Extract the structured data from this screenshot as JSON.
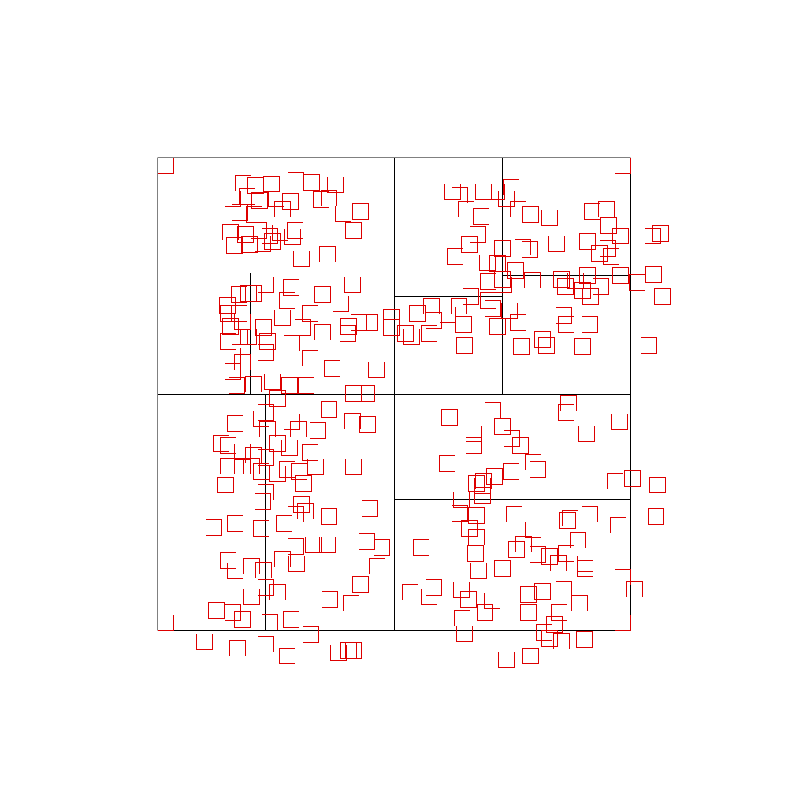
{
  "colors": {
    "partition": "#000000",
    "box": "#dd0000",
    "background": "#ffffff"
  },
  "diagram_data": {
    "type": "spatial-partition",
    "domain": [
      0,
      1
    ],
    "box_size": 0.03333,
    "cells": [
      [
        0.0,
        0.0,
        0.5,
        0.2433
      ],
      [
        0.5,
        0.0,
        0.7283,
        0.2933
      ],
      [
        0.7283,
        0.0,
        1.0,
        0.2483
      ],
      [
        0.0,
        0.2433,
        0.5,
        0.5
      ],
      [
        0.5,
        0.2933,
        0.7283,
        0.5
      ],
      [
        0.7283,
        0.2483,
        1.0,
        0.5
      ],
      [
        0.0,
        0.5,
        0.5,
        0.7467
      ],
      [
        0.0,
        0.7467,
        0.5,
        1.0
      ],
      [
        0.5,
        0.5,
        1.0,
        0.7217
      ],
      [
        0.5,
        0.7217,
        1.0,
        1.0
      ],
      [
        0.2117,
        0.0,
        0.2117,
        0.2433
      ],
      [
        0.195,
        0.2433,
        0.195,
        0.5
      ],
      [
        0.2267,
        0.5,
        0.2267,
        0.7467
      ],
      [
        0.2267,
        0.7467,
        0.2267,
        1.0
      ],
      [
        0.7633,
        0.7217,
        0.7633,
        1.0
      ]
    ],
    "boxes": [
      [
        0.0167,
        0.0167
      ],
      [
        0.9833,
        0.0167
      ],
      [
        0.0167,
        0.9833
      ],
      [
        0.9833,
        0.9833
      ],
      [
        0.18,
        0.0533
      ],
      [
        0.2067,
        0.0583
      ],
      [
        0.24,
        0.055
      ],
      [
        0.2917,
        0.0467
      ],
      [
        0.325,
        0.0517
      ],
      [
        0.375,
        0.0567
      ],
      [
        0.1583,
        0.0867
      ],
      [
        0.1883,
        0.0817
      ],
      [
        0.215,
        0.09
      ],
      [
        0.25,
        0.0867
      ],
      [
        0.28,
        0.0917
      ],
      [
        0.345,
        0.0883
      ],
      [
        0.3917,
        0.1183
      ],
      [
        0.1733,
        0.115
      ],
      [
        0.2033,
        0.12
      ],
      [
        0.2633,
        0.1083
      ],
      [
        0.3617,
        0.085
      ],
      [
        0.4283,
        0.1133
      ],
      [
        0.1533,
        0.1567
      ],
      [
        0.185,
        0.1617
      ],
      [
        0.2133,
        0.1533
      ],
      [
        0.2367,
        0.165
      ],
      [
        0.2583,
        0.1583
      ],
      [
        0.29,
        0.1533
      ],
      [
        0.4133,
        0.1533
      ],
      [
        0.1617,
        0.185
      ],
      [
        0.1933,
        0.1833
      ],
      [
        0.2217,
        0.1817
      ],
      [
        0.2417,
        0.1767
      ],
      [
        0.285,
        0.1667
      ],
      [
        0.3583,
        0.2033
      ],
      [
        0.3033,
        0.2133
      ],
      [
        0.7467,
        0.0617
      ],
      [
        0.6883,
        0.0717
      ],
      [
        0.7167,
        0.0717
      ],
      [
        0.7367,
        0.0867
      ],
      [
        0.7617,
        0.1083
      ],
      [
        0.7883,
        0.12
      ],
      [
        0.6833,
        0.1233
      ],
      [
        0.8283,
        0.1267
      ],
      [
        0.9183,
        0.1133
      ],
      [
        0.9483,
        0.1083
      ],
      [
        0.9533,
        0.1433
      ],
      [
        0.9783,
        0.165
      ],
      [
        0.9083,
        0.1767
      ],
      [
        0.9333,
        0.2017
      ],
      [
        0.9583,
        0.2083
      ],
      [
        0.7867,
        0.1933
      ],
      [
        0.8433,
        0.1817
      ],
      [
        0.7283,
        0.1917
      ],
      [
        0.7717,
        0.1883
      ],
      [
        0.6233,
        0.0717
      ],
      [
        0.6383,
        0.0783
      ],
      [
        0.6517,
        0.1083
      ],
      [
        0.6767,
        0.1617
      ],
      [
        0.6583,
        0.1833
      ],
      [
        0.6283,
        0.2083
      ],
      [
        0.6967,
        0.2217
      ],
      [
        0.7183,
        0.2233
      ],
      [
        0.7567,
        0.2383
      ],
      [
        0.7283,
        0.2567
      ],
      [
        0.7317,
        0.2683
      ],
      [
        0.7917,
        0.2583
      ],
      [
        0.8533,
        0.2567
      ],
      [
        0.8833,
        0.26
      ],
      [
        0.9083,
        0.2483
      ],
      [
        0.9783,
        0.2483
      ],
      [
        1.0133,
        0.2633
      ],
      [
        1.0633,
        0.16
      ],
      [
        1.0467,
        0.165
      ],
      [
        1.0483,
        0.2467
      ],
      [
        1.0667,
        0.2933
      ],
      [
        1.0383,
        0.3967
      ],
      [
        0.9367,
        0.2717
      ],
      [
        0.915,
        0.2933
      ],
      [
        0.8983,
        0.28
      ],
      [
        0.8617,
        0.2717
      ],
      [
        0.8583,
        0.3333
      ],
      [
        0.9133,
        0.3517
      ],
      [
        0.8983,
        0.3983
      ],
      [
        0.8217,
        0.3967
      ],
      [
        0.7617,
        0.3483
      ],
      [
        0.7433,
        0.3233
      ],
      [
        0.7083,
        0.3183
      ],
      [
        0.6983,
        0.3017
      ],
      [
        0.6983,
        0.2617
      ],
      [
        0.6617,
        0.2933
      ],
      [
        0.6367,
        0.3133
      ],
      [
        0.6467,
        0.3517
      ],
      [
        0.6133,
        0.3317
      ],
      [
        0.5833,
        0.3433
      ],
      [
        0.5783,
        0.3133
      ],
      [
        0.5483,
        0.3283
      ],
      [
        0.5733,
        0.3717
      ],
      [
        0.5233,
        0.3717
      ],
      [
        0.4933,
        0.3367
      ],
      [
        0.4933,
        0.3583
      ],
      [
        0.5367,
        0.3783
      ],
      [
        0.6483,
        0.3967
      ],
      [
        0.7183,
        0.3567
      ],
      [
        0.7683,
        0.3983
      ],
      [
        0.8133,
        0.3833
      ],
      [
        0.8633,
        0.3517
      ],
      [
        0.9517,
        0.1917
      ],
      [
        0.1467,
        0.3117
      ],
      [
        0.1717,
        0.2883
      ],
      [
        0.1917,
        0.2867
      ],
      [
        0.2283,
        0.2683
      ],
      [
        0.2817,
        0.2733
      ],
      [
        0.3483,
        0.2883
      ],
      [
        0.4117,
        0.2683
      ],
      [
        0.3867,
        0.3083
      ],
      [
        0.1483,
        0.3283
      ],
      [
        0.1717,
        0.3283
      ],
      [
        0.2017,
        0.2867
      ],
      [
        0.2733,
        0.3017
      ],
      [
        0.3217,
        0.3283
      ],
      [
        0.4033,
        0.3567
      ],
      [
        0.425,
        0.3483
      ],
      [
        0.4017,
        0.3717
      ],
      [
        0.4483,
        0.3483
      ],
      [
        0.1533,
        0.3567
      ],
      [
        0.1783,
        0.3467
      ],
      [
        0.2233,
        0.3583
      ],
      [
        0.2633,
        0.3383
      ],
      [
        0.3067,
        0.3583
      ],
      [
        0.3483,
        0.3683
      ],
      [
        0.1483,
        0.3883
      ],
      [
        0.1733,
        0.3783
      ],
      [
        0.1917,
        0.3783
      ],
      [
        0.2317,
        0.3883
      ],
      [
        0.2833,
        0.3917
      ],
      [
        0.3217,
        0.4233
      ],
      [
        0.1583,
        0.4183
      ],
      [
        0.1783,
        0.4317
      ],
      [
        0.2283,
        0.4117
      ],
      [
        0.3683,
        0.445
      ],
      [
        0.4617,
        0.4483
      ],
      [
        0.1583,
        0.4517
      ],
      [
        0.2417,
        0.4733
      ],
      [
        0.2783,
        0.4817
      ],
      [
        0.3133,
        0.4817
      ],
      [
        0.4133,
        0.4983
      ],
      [
        0.4417,
        0.4983
      ],
      [
        0.1667,
        0.4817
      ],
      [
        0.2017,
        0.4783
      ],
      [
        0.2533,
        0.5083
      ],
      [
        0.2283,
        0.5383
      ],
      [
        0.2183,
        0.5517
      ],
      [
        0.1633,
        0.5617
      ],
      [
        0.2833,
        0.5583
      ],
      [
        0.3617,
        0.5317
      ],
      [
        0.4117,
        0.5567
      ],
      [
        0.4433,
        0.5633
      ],
      [
        0.2317,
        0.5733
      ],
      [
        0.2967,
        0.5733
      ],
      [
        0.3383,
        0.5767
      ],
      [
        0.2533,
        0.6033
      ],
      [
        0.1333,
        0.6033
      ],
      [
        0.1483,
        0.6083
      ],
      [
        0.1783,
        0.6217
      ],
      [
        0.2017,
        0.6283
      ],
      [
        0.2283,
        0.6333
      ],
      [
        0.2783,
        0.6133
      ],
      [
        0.3217,
        0.6233
      ],
      [
        0.1483,
        0.6517
      ],
      [
        0.1783,
        0.6517
      ],
      [
        0.1983,
        0.6517
      ],
      [
        0.2183,
        0.6633
      ],
      [
        0.2533,
        0.6683
      ],
      [
        0.2733,
        0.6583
      ],
      [
        0.2983,
        0.6633
      ],
      [
        0.3333,
        0.6533
      ],
      [
        0.3083,
        0.6883
      ],
      [
        0.4133,
        0.6533
      ],
      [
        0.1433,
        0.6917
      ],
      [
        0.2283,
        0.7067
      ],
      [
        0.2217,
        0.7267
      ],
      [
        0.3033,
        0.7333
      ],
      [
        0.1183,
        0.7817
      ],
      [
        0.1633,
        0.7733
      ],
      [
        0.2183,
        0.7833
      ],
      [
        0.2667,
        0.7733
      ],
      [
        0.2917,
        0.7533
      ],
      [
        0.3117,
        0.7467
      ],
      [
        0.3617,
        0.7583
      ],
      [
        0.4483,
        0.7417
      ],
      [
        0.1483,
        0.8517
      ],
      [
        0.1633,
        0.8733
      ],
      [
        0.1983,
        0.8633
      ],
      [
        0.2233,
        0.8717
      ],
      [
        0.2633,
        0.8483
      ],
      [
        0.2933,
        0.8583
      ],
      [
        0.3283,
        0.8183
      ],
      [
        0.3583,
        0.8183
      ],
      [
        0.2917,
        0.8217
      ],
      [
        0.4417,
        0.8117
      ],
      [
        0.4733,
        0.8233
      ],
      [
        0.4633,
        0.8633
      ],
      [
        0.1983,
        0.9283
      ],
      [
        0.2283,
        0.9083
      ],
      [
        0.2533,
        0.9183
      ],
      [
        0.1233,
        0.9567
      ],
      [
        0.1583,
        0.9617
      ],
      [
        0.1783,
        0.9767
      ],
      [
        0.2367,
        0.9817
      ],
      [
        0.2817,
        0.9767
      ],
      [
        0.4283,
        0.9017
      ],
      [
        0.4083,
        0.9417
      ],
      [
        0.3633,
        0.9333
      ],
      [
        0.3233,
        1.0083
      ],
      [
        0.4033,
        1.0417
      ],
      [
        0.4133,
        1.0417
      ],
      [
        0.2283,
        1.0283
      ],
      [
        0.1683,
        1.0367
      ],
      [
        0.0983,
        1.0233
      ],
      [
        0.2733,
        1.0533
      ],
      [
        0.3817,
        1.0467
      ],
      [
        0.6117,
        0.6467
      ],
      [
        0.6683,
        0.6083
      ],
      [
        0.7083,
        0.5333
      ],
      [
        0.7283,
        0.5683
      ],
      [
        0.7667,
        0.6083
      ],
      [
        0.7933,
        0.6433
      ],
      [
        0.8033,
        0.6583
      ],
      [
        0.7483,
        0.5933
      ],
      [
        0.6683,
        0.5833
      ],
      [
        0.6167,
        0.5483
      ],
      [
        0.8633,
        0.5383
      ],
      [
        0.8683,
        0.5183
      ],
      [
        0.9067,
        0.5833
      ],
      [
        0.9767,
        0.5583
      ],
      [
        0.9667,
        0.6833
      ],
      [
        1.0033,
        0.6783
      ],
      [
        1.0567,
        0.6917
      ],
      [
        1.0533,
        0.7583
      ],
      [
        0.9733,
        0.7767
      ],
      [
        0.9133,
        0.7533
      ],
      [
        0.8717,
        0.7617
      ],
      [
        0.8883,
        0.8083
      ],
      [
        0.8633,
        0.8367
      ],
      [
        0.8283,
        0.8433
      ],
      [
        0.8467,
        0.8567
      ],
      [
        0.9033,
        0.8583
      ],
      [
        0.9033,
        0.8683
      ],
      [
        0.8033,
        0.8383
      ],
      [
        0.7733,
        0.8167
      ],
      [
        0.7583,
        0.8283
      ],
      [
        0.7283,
        0.8683
      ],
      [
        0.6783,
        0.8733
      ],
      [
        0.6717,
        0.8367
      ],
      [
        0.6733,
        0.8017
      ],
      [
        0.6583,
        0.7833
      ],
      [
        0.6733,
        0.7567
      ],
      [
        0.6383,
        0.7517
      ],
      [
        0.6883,
        0.6833
      ],
      [
        0.5567,
        0.8233
      ],
      [
        0.5333,
        0.9183
      ],
      [
        0.5733,
        0.9283
      ],
      [
        0.6417,
        0.9133
      ],
      [
        0.6567,
        0.9333
      ],
      [
        0.7067,
        0.9367
      ],
      [
        0.7833,
        0.9233
      ],
      [
        0.8133,
        0.9167
      ],
      [
        0.8583,
        0.9117
      ],
      [
        0.8917,
        0.9417
      ],
      [
        0.8483,
        0.9617
      ],
      [
        0.8383,
        0.9867
      ],
      [
        0.7833,
        0.9617
      ],
      [
        0.8167,
        1.0033
      ],
      [
        0.8533,
        1.0217
      ],
      [
        0.9017,
        1.0183
      ],
      [
        0.7883,
        1.0533
      ],
      [
        0.8283,
        1.0167
      ],
      [
        0.7367,
        1.0617
      ],
      [
        0.6433,
        0.9733
      ],
      [
        0.5833,
        0.9083
      ],
      [
        0.6917,
        0.9617
      ],
      [
        0.6483,
        1.0067
      ],
      [
        0.6733,
        0.6883
      ],
      [
        0.7117,
        0.6733
      ],
      [
        0.7467,
        0.6633
      ],
      [
        0.6417,
        0.7233
      ],
      [
        0.6867,
        0.7133
      ],
      [
        0.6867,
        0.6933
      ],
      [
        0.7933,
        0.7867
      ],
      [
        0.8667,
        0.7667
      ],
      [
        0.7533,
        0.7533
      ],
      [
        1.0083,
        0.9117
      ],
      [
        0.9833,
        0.8867
      ]
    ]
  }
}
